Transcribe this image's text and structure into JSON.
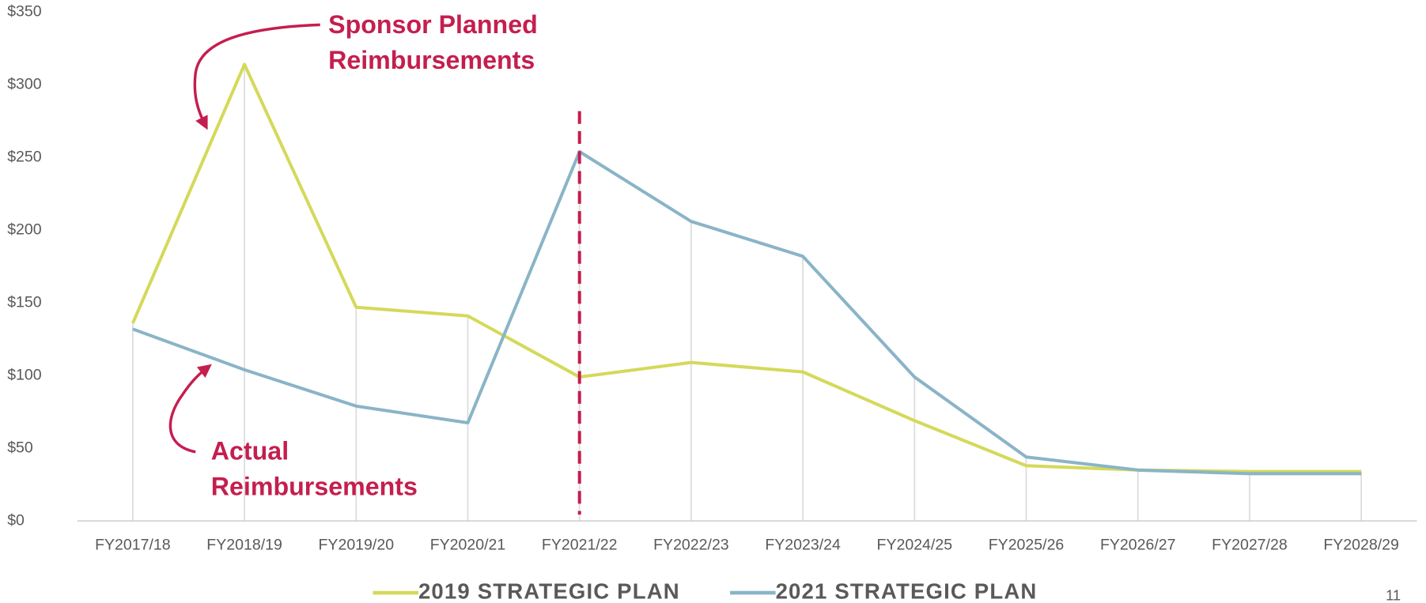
{
  "chart_data": {
    "type": "line",
    "categories": [
      "FY2017/18",
      "FY2018/19",
      "FY2019/20",
      "FY2020/21",
      "FY2021/22",
      "FY2022/23",
      "FY2023/24",
      "FY2024/25",
      "FY2025/26",
      "FY2026/27",
      "FY2027/28",
      "FY2028/29"
    ],
    "series": [
      {
        "name": "2019 STRATEGIC PLAN",
        "color": "#d4d95a",
        "values": [
          136,
          314,
          147,
          141,
          99,
          109,
          102.5,
          69,
          38,
          35,
          34,
          34
        ]
      },
      {
        "name": "2021 STRATEGIC PLAN",
        "color": "#8ab4c7",
        "values": [
          132,
          104,
          79,
          67.5,
          254,
          206,
          182,
          99,
          44,
          35,
          32.5,
          32.5
        ]
      }
    ],
    "ylim": [
      0,
      350
    ],
    "yticks": [
      {
        "value": 0,
        "label": "$0"
      },
      {
        "value": 50,
        "label": "$50"
      },
      {
        "value": 100,
        "label": "$100"
      },
      {
        "value": 150,
        "label": "$150"
      },
      {
        "value": 200,
        "label": "$200"
      },
      {
        "value": 250,
        "label": "$250"
      },
      {
        "value": 300,
        "label": "$300"
      },
      {
        "value": 350,
        "label": "$350"
      }
    ],
    "grid": "vertical",
    "legend": "bottom",
    "annotations": [
      {
        "text": [
          "Sponsor Planned",
          "Reimbursements"
        ]
      },
      {
        "text": [
          "Actual",
          "Reimbursements"
        ]
      }
    ],
    "page_number": "11"
  }
}
